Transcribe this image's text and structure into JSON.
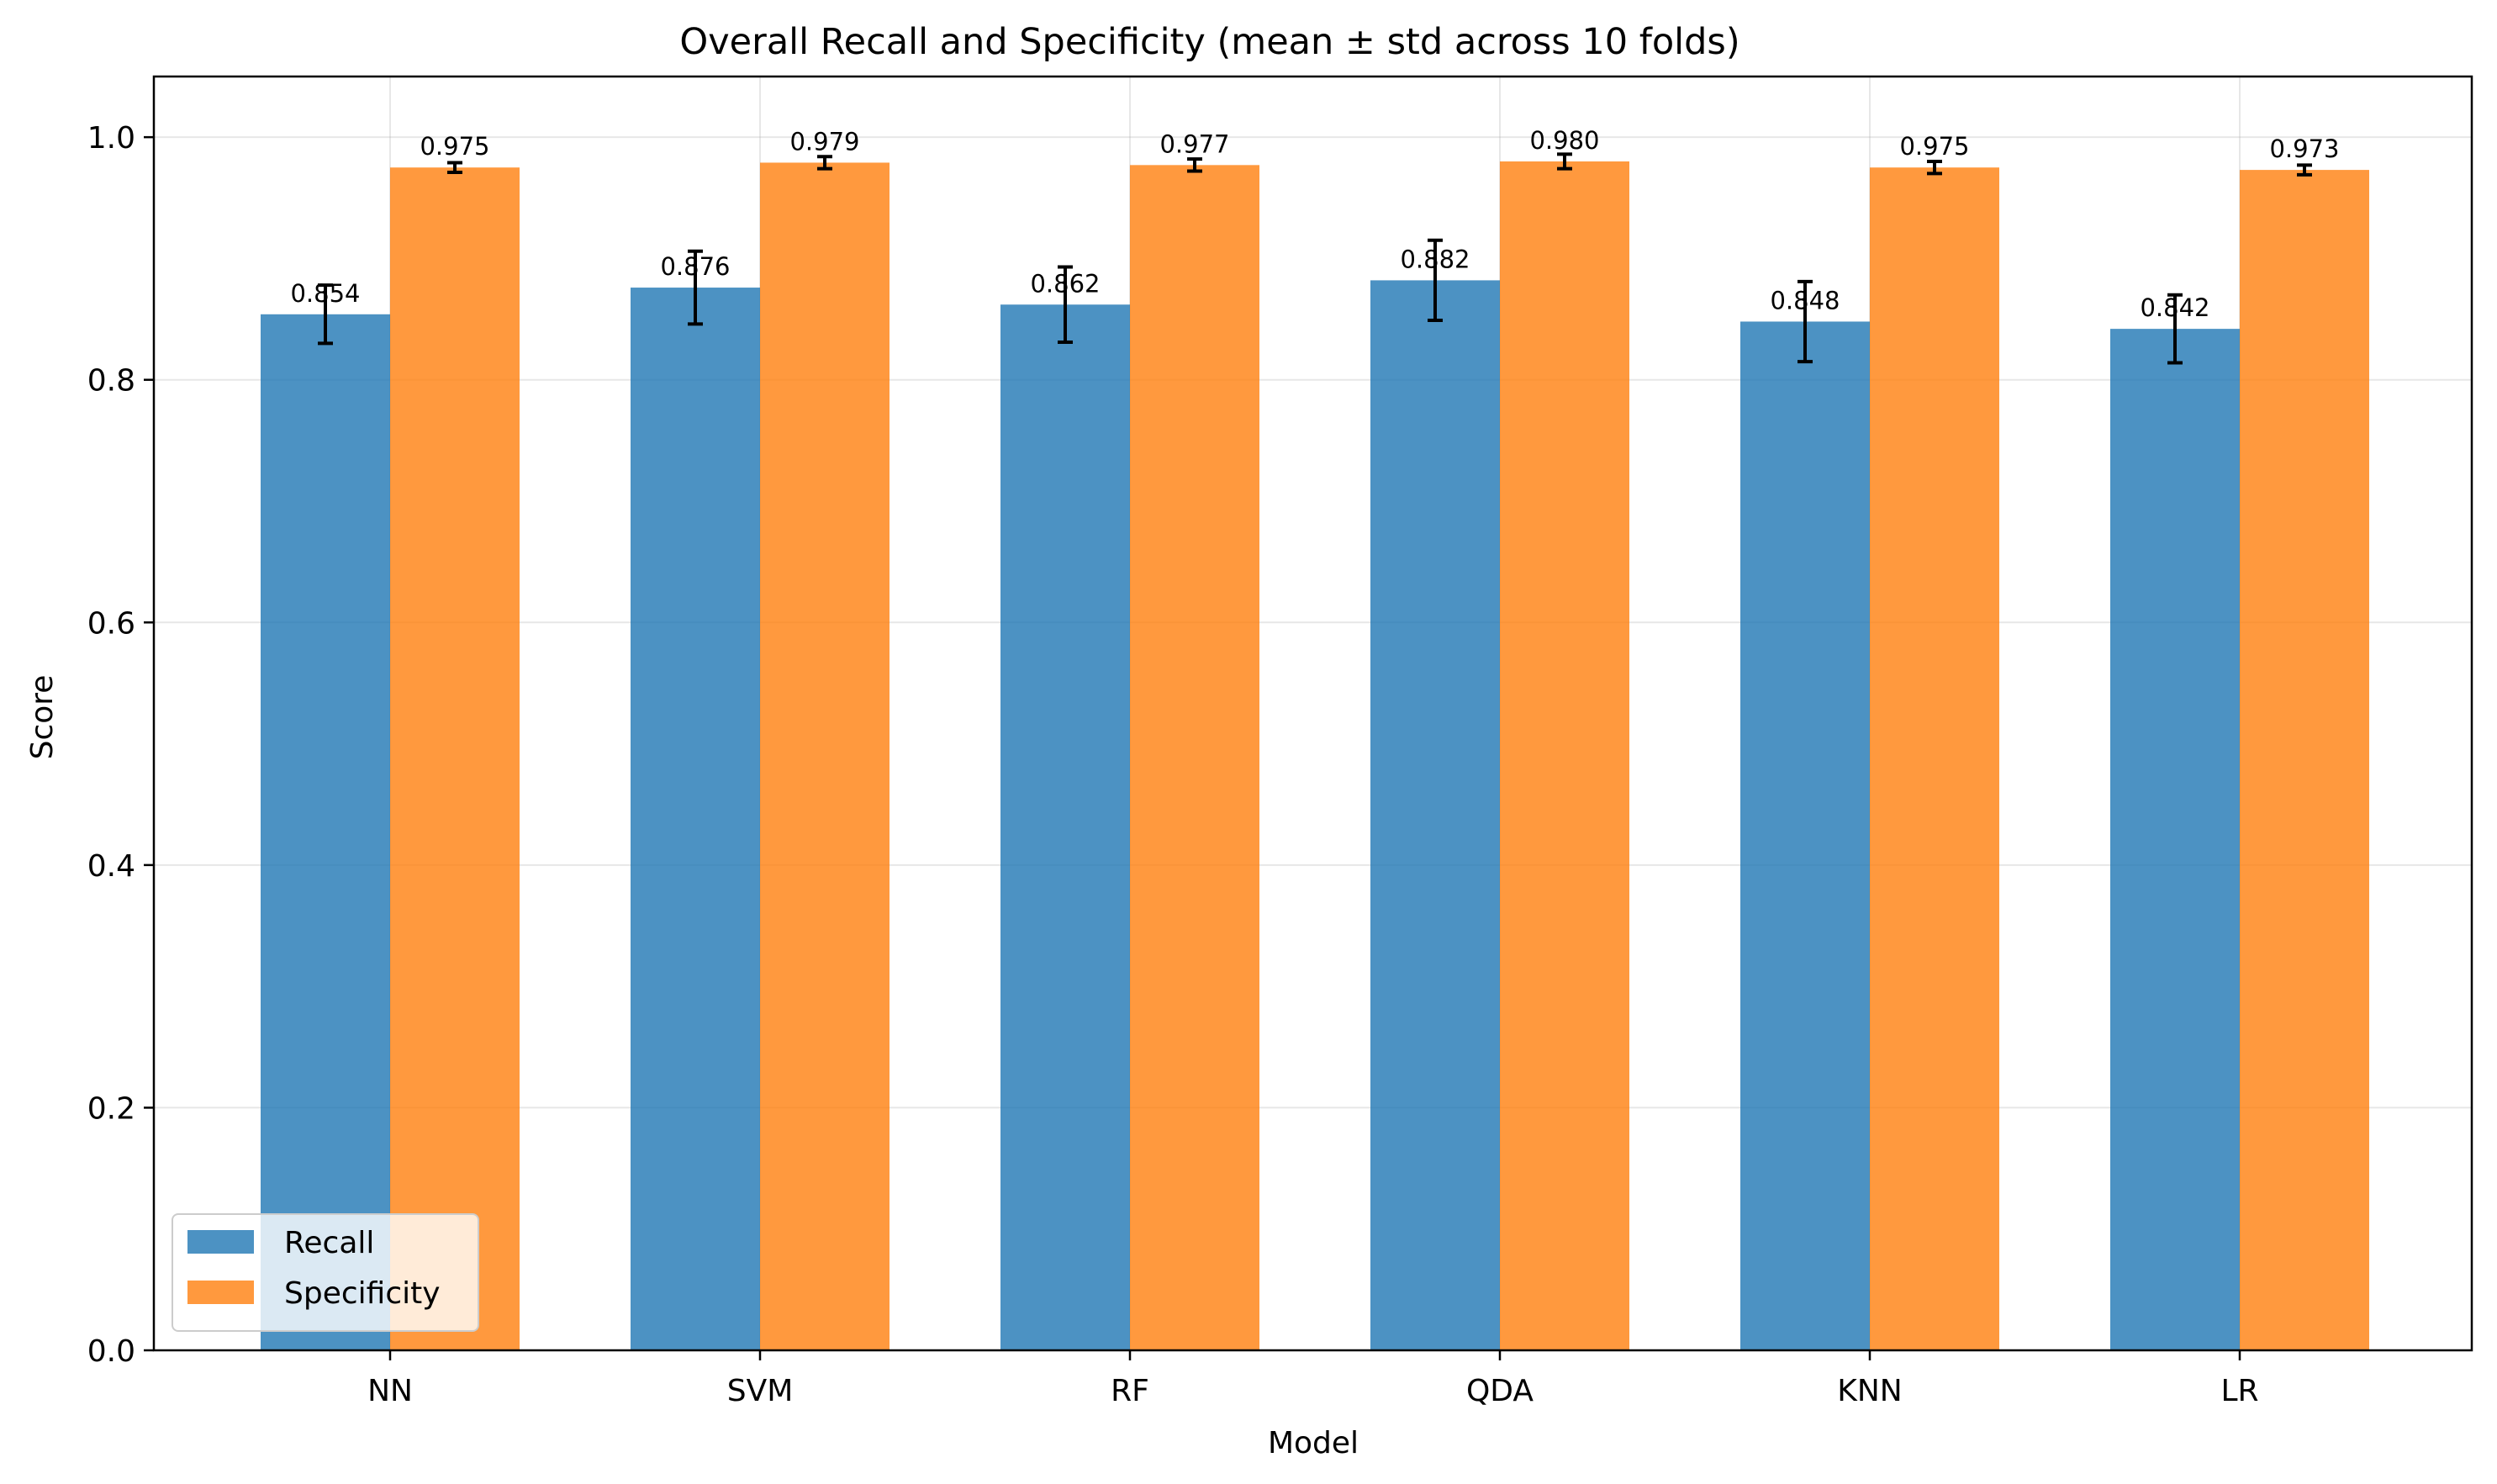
{
  "chart_data": {
    "type": "bar",
    "title": "Overall Recall and Specificity (mean ± std across 10 folds)",
    "xlabel": "Model",
    "ylabel": "Score",
    "categories": [
      "NN",
      "SVM",
      "RF",
      "QDA",
      "KNN",
      "LR"
    ],
    "series": [
      {
        "name": "Recall",
        "color": "#1f77b4",
        "values": [
          0.854,
          0.876,
          0.862,
          0.882,
          0.848,
          0.842
        ],
        "std": [
          0.024,
          0.03,
          0.031,
          0.033,
          0.033,
          0.028
        ],
        "value_labels": [
          "0.854",
          "0.876",
          "0.862",
          "0.882",
          "0.848",
          "0.842"
        ]
      },
      {
        "name": "Specificity",
        "color": "#ff7f0e",
        "values": [
          0.975,
          0.979,
          0.977,
          0.98,
          0.975,
          0.973
        ],
        "std": [
          0.004,
          0.005,
          0.005,
          0.006,
          0.005,
          0.004
        ],
        "value_labels": [
          "0.975",
          "0.979",
          "0.977",
          "0.980",
          "0.975",
          "0.973"
        ]
      }
    ],
    "ylim": [
      0,
      1.05
    ],
    "yticks": [
      0.0,
      0.2,
      0.4,
      0.6,
      0.8,
      1.0
    ],
    "ytick_labels": [
      "0.0",
      "0.2",
      "0.4",
      "0.6",
      "0.8",
      "1.0"
    ],
    "grid": true,
    "legend_position": "lower-left"
  }
}
